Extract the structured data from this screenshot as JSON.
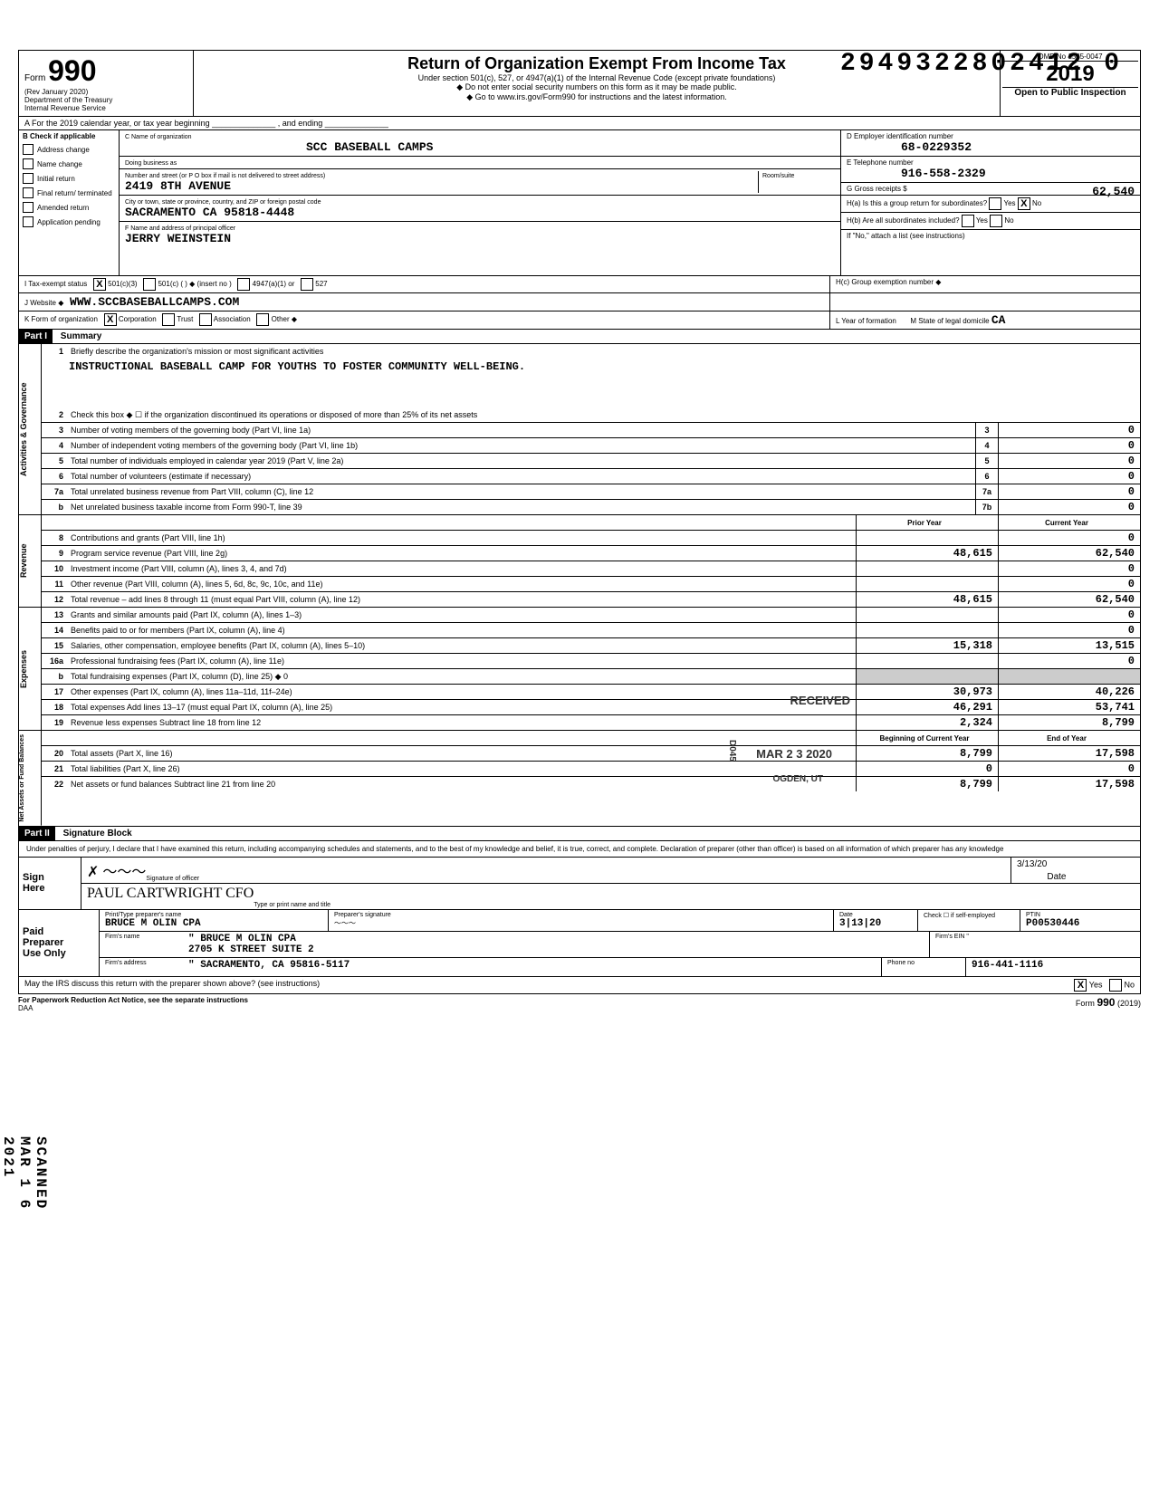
{
  "dln": "2949322802412 0",
  "form": {
    "prefix": "Form",
    "number": "990",
    "rev": "(Rev January 2020)",
    "dept": "Department of the Treasury",
    "irs": "Internal Revenue Service",
    "title": "Return of Organization Exempt From Income Tax",
    "subtitle": "Under section 501(c), 527, or 4947(a)(1) of the Internal Revenue Code (except private foundations)",
    "note1": "◆ Do not enter social security numbers on this form as it may be made public.",
    "note2": "◆ Go to www.irs.gov/Form990 for instructions and the latest information.",
    "omb": "OMB No 1545-0047",
    "year": "2019",
    "open": "Open to Public Inspection"
  },
  "lineA": "A   For the 2019 calendar year, or tax year beginning ______________ , and ending ______________",
  "colB": {
    "hdr": "B  Check if applicable",
    "items": [
      "Address change",
      "Name change",
      "Initial return",
      "Final return/ terminated",
      "Amended return",
      "Application pending"
    ]
  },
  "colC": {
    "name_lbl": "C Name of organization",
    "name": "SCC BASEBALL CAMPS",
    "dba_lbl": "Doing business as",
    "dba": "",
    "street_lbl": "Number and street (or P O box if mail is not delivered to street address)",
    "street": "2419 8TH AVENUE",
    "room_lbl": "Room/suite",
    "city_lbl": "City or town, state or province, country, and ZIP or foreign postal code",
    "city": "SACRAMENTO            CA 95818-4448",
    "officer_lbl": "F Name and address of principal officer",
    "officer": "JERRY WEINSTEIN"
  },
  "colD": {
    "ein_lbl": "D Employer identification number",
    "ein": "68-0229352",
    "tel_lbl": "E Telephone number",
    "tel": "916-558-2329",
    "gross_lbl": "G Gross receipts $",
    "gross": "62,540",
    "ha_lbl": "H(a) Is this a group return for subordinates?",
    "ha_yes": "Yes",
    "ha_no": "No",
    "ha_checked": "X",
    "hb_lbl": "H(b) Are all subordinates included?",
    "hb_yes": "Yes",
    "hb_no": "No",
    "hb_note": "If \"No,\" attach a list (see instructions)",
    "hc_lbl": "H(c) Group exemption number ◆"
  },
  "rowI": {
    "lbl": "I    Tax-exempt status",
    "c3": "501(c)(3)",
    "c3_chk": "X",
    "c": "501(c) (      ) ◆ (insert no )",
    "a1": "4947(a)(1) or",
    "527": "527"
  },
  "rowJ": {
    "lbl": "J    Website ◆",
    "val": "WWW.SCCBASEBALLCAMPS.COM"
  },
  "rowK": {
    "lbl": "K   Form of organization",
    "corp": "Corporation",
    "corp_chk": "X",
    "trust": "Trust",
    "assoc": "Association",
    "other": "Other ◆",
    "yof_lbl": "L   Year of formation",
    "yof": "",
    "dom_lbl": "M  State of legal domicile",
    "dom": "CA"
  },
  "part1": {
    "hdr": "Part I",
    "title": "Summary",
    "side_gov": "Activities & Governance",
    "side_rev": "Revenue",
    "side_exp": "Expenses",
    "side_net": "Net Assets or Fund Balances",
    "l1": "Briefly describe the organization's mission or most significant activities",
    "mission": "INSTRUCTIONAL BASEBALL CAMP FOR YOUTHS TO FOSTER COMMUNITY WELL-BEING.",
    "l2": "Check this box ◆ ☐  if the organization discontinued its operations or disposed of more than 25% of its net assets",
    "lines_gov": [
      {
        "n": "3",
        "t": "Number of voting members of the governing body (Part VI, line 1a)",
        "box": "3",
        "v": "0"
      },
      {
        "n": "4",
        "t": "Number of independent voting members of the governing body (Part VI, line 1b)",
        "box": "4",
        "v": "0"
      },
      {
        "n": "5",
        "t": "Total number of individuals employed in calendar year 2019 (Part V, line 2a)",
        "box": "5",
        "v": "0"
      },
      {
        "n": "6",
        "t": "Total number of volunteers (estimate if necessary)",
        "box": "6",
        "v": "0"
      },
      {
        "n": "7a",
        "t": "Total unrelated business revenue from Part VIII, column (C), line 12",
        "box": "7a",
        "v": "0"
      },
      {
        "n": "b",
        "t": "Net unrelated business taxable income from Form 990-T, line 39",
        "box": "7b",
        "v": "0"
      }
    ],
    "col_prior": "Prior Year",
    "col_curr": "Current Year",
    "lines_rev": [
      {
        "n": "8",
        "t": "Contributions and grants (Part VIII, line 1h)",
        "p": "",
        "c": "0"
      },
      {
        "n": "9",
        "t": "Program service revenue (Part VIII, line 2g)",
        "p": "48,615",
        "c": "62,540"
      },
      {
        "n": "10",
        "t": "Investment income (Part VIII, column (A), lines 3, 4, and 7d)",
        "p": "",
        "c": "0"
      },
      {
        "n": "11",
        "t": "Other revenue (Part VIII, column (A), lines 5, 6d, 8c, 9c, 10c, and 11e)",
        "p": "",
        "c": "0"
      },
      {
        "n": "12",
        "t": "Total revenue – add lines 8 through 11 (must equal Part VIII, column (A), line 12)",
        "p": "48,615",
        "c": "62,540"
      }
    ],
    "lines_exp": [
      {
        "n": "13",
        "t": "Grants and similar amounts paid (Part IX, column (A), lines 1–3)",
        "p": "",
        "c": "0"
      },
      {
        "n": "14",
        "t": "Benefits paid to or for members (Part IX, column (A), line 4)",
        "p": "",
        "c": "0"
      },
      {
        "n": "15",
        "t": "Salaries, other compensation, employee benefits (Part IX, column (A), lines 5–10)",
        "p": "15,318",
        "c": "13,515"
      },
      {
        "n": "16a",
        "t": "Professional fundraising fees (Part IX, column (A), line 11e)",
        "p": "",
        "c": "0"
      },
      {
        "n": "b",
        "t": "Total fundraising expenses (Part IX, column (D), line 25) ◆             0",
        "p": "shade",
        "c": "shade"
      },
      {
        "n": "17",
        "t": "Other expenses (Part IX, column (A), lines 11a–11d, 11f–24e)",
        "p": "30,973",
        "c": "40,226"
      },
      {
        "n": "18",
        "t": "Total expenses  Add lines 13–17 (must equal Part IX, column (A), line 25)",
        "p": "46,291",
        "c": "53,741"
      },
      {
        "n": "19",
        "t": "Revenue less expenses  Subtract line 18 from line 12",
        "p": "2,324",
        "c": "8,799"
      }
    ],
    "col_beg": "Beginning of Current Year",
    "col_end": "End of Year",
    "lines_net": [
      {
        "n": "20",
        "t": "Total assets (Part X, line 16)",
        "p": "8,799",
        "c": "17,598"
      },
      {
        "n": "21",
        "t": "Total liabilities (Part X, line 26)",
        "p": "0",
        "c": "0"
      },
      {
        "n": "22",
        "t": "Net assets or fund balances  Subtract line 21 from line 20",
        "p": "8,799",
        "c": "17,598"
      }
    ]
  },
  "stamps": {
    "received": "RECEIVED",
    "date": "MAR 2 3 2020",
    "ogden": "OGDEN, UT",
    "d045": "D045"
  },
  "part2": {
    "hdr": "Part II",
    "title": "Signature Block",
    "perjury": "Under penalties of perjury, I declare that I have examined this return, including accompanying schedules and statements, and to the best of my knowledge and belief, it is true, correct, and complete. Declaration of preparer (other than officer) is based on all information of which preparer has any knowledge",
    "sign": "Sign Here",
    "sig_lbl": "Signature of officer",
    "date_lbl": "Date",
    "date_val": "3/13/20",
    "name_lbl": "Type or print name and title",
    "name_val": "PAUL CARTWRIGHT   CFO",
    "paid": "Paid Preparer Use Only",
    "prep_name_lbl": "Print/Type preparer's name",
    "prep_name": "BRUCE M OLIN CPA",
    "prep_sig_lbl": "Preparer's signature",
    "prep_date_lbl": "Date",
    "prep_date": "3|13|20",
    "check_lbl": "Check ☐ if self-employed",
    "ptin_lbl": "PTIN",
    "ptin": "P00530446",
    "firm_name_lbl": "Firm's name",
    "firm_name": "\"   BRUCE M OLIN CPA",
    "firm_ein_lbl": "Firm's EIN \"",
    "firm_addr_lbl": "Firm's address",
    "firm_addr1": "    2705 K STREET SUITE 2",
    "firm_addr2": "\"   SACRAMENTO, CA  95816-5117",
    "phone_lbl": "Phone no",
    "phone": "916-441-1116",
    "discuss": "May the IRS discuss this return with the preparer shown above? (see instructions)",
    "yes": "Yes",
    "yes_chk": "X",
    "no": "No"
  },
  "footer": {
    "pra": "For Paperwork Reduction Act Notice, see the separate instructions",
    "daa": "DAA",
    "form": "Form",
    "num": "990",
    "yr": "(2019)"
  },
  "scanned": "SCANNED MAR 1 6 2021"
}
